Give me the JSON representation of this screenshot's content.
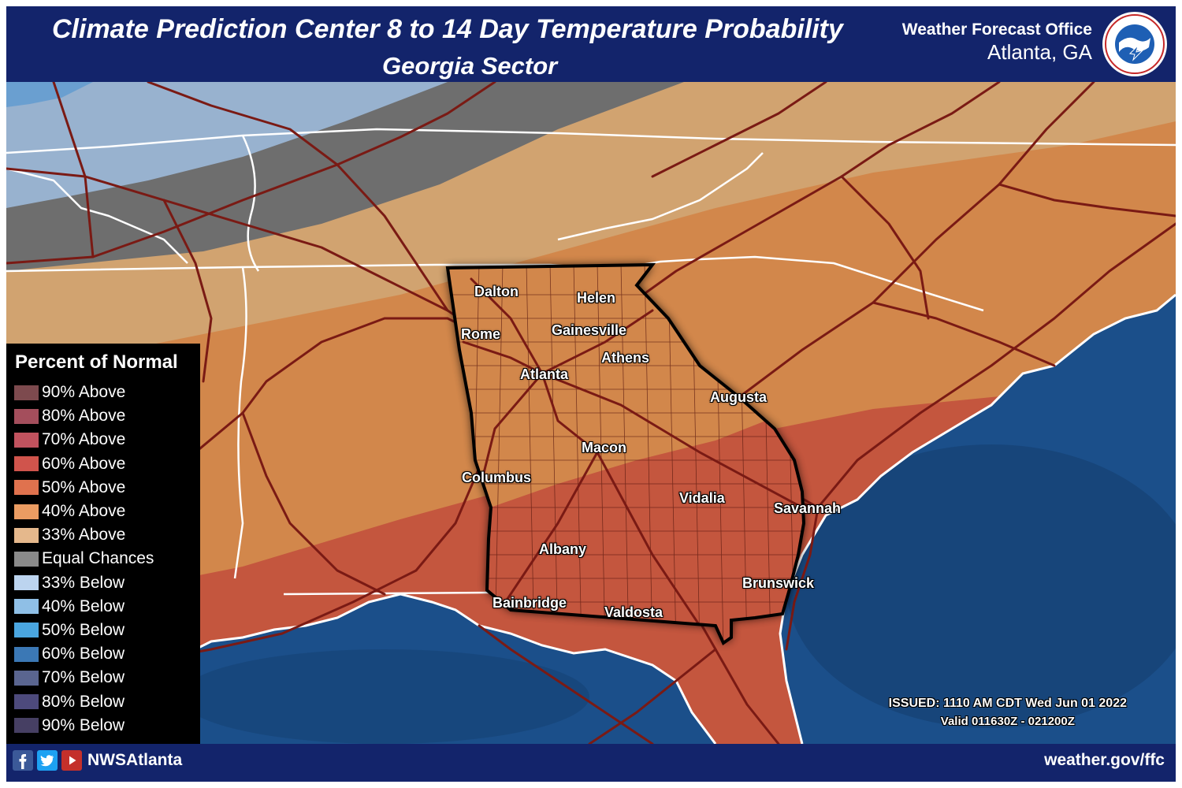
{
  "header": {
    "title": "Climate Prediction Center 8 to 14 Day Temperature Probability",
    "subtitle": "Georgia Sector",
    "office_line1": "Weather Forecast Office",
    "office_line2": "Atlanta, GA",
    "logo_icon": "nws-logo-icon"
  },
  "map": {
    "cities": [
      "Dalton",
      "Helen",
      "Rome",
      "Gainesville",
      "Athens",
      "Atlanta",
      "Augusta",
      "Macon",
      "Columbus",
      "Vidalia",
      "Savannah",
      "Albany",
      "Brunswick",
      "Bainbridge",
      "Valdosta"
    ],
    "probability_zones": [
      "Equal Chances",
      "33% Above",
      "40% Above",
      "50% Above",
      "33% Below"
    ]
  },
  "legend": {
    "title": "Percent of Normal",
    "items": [
      {
        "label": "90% Above",
        "color": "#7d4a4e"
      },
      {
        "label": "80% Above",
        "color": "#a44e5c"
      },
      {
        "label": "70% Above",
        "color": "#c1525e"
      },
      {
        "label": "60% Above",
        "color": "#d0544c"
      },
      {
        "label": "50% Above",
        "color": "#e0724e"
      },
      {
        "label": "40% Above",
        "color": "#eb9c62"
      },
      {
        "label": "33% Above",
        "color": "#e5b88c"
      },
      {
        "label": "Equal Chances",
        "color": "#8a8a8a"
      },
      {
        "label": "33% Below",
        "color": "#bcd4ef"
      },
      {
        "label": "40% Below",
        "color": "#8fbfe6"
      },
      {
        "label": "50% Below",
        "color": "#4aa6e0"
      },
      {
        "label": "60% Below",
        "color": "#3b78b5"
      },
      {
        "label": "70% Below",
        "color": "#5a6590"
      },
      {
        "label": "80% Below",
        "color": "#4d4a7c"
      },
      {
        "label": "90% Below",
        "color": "#463f63"
      }
    ]
  },
  "issued": {
    "line1": "ISSUED: 1110 AM CDT Wed Jun 01 2022",
    "line2": "Valid 011630Z - 021200Z"
  },
  "footer": {
    "handle": "NWSAtlanta",
    "website": "weather.gov/ffc",
    "icons": [
      "facebook-icon",
      "twitter-icon",
      "youtube-icon"
    ]
  }
}
